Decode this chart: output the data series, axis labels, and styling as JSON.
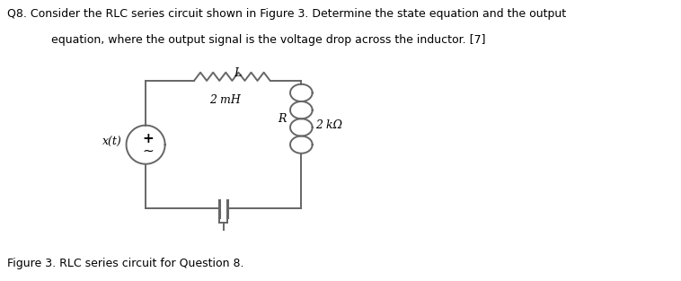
{
  "title_line1": "Q8. Consider the RLC series circuit shown in Figure 3. Determine the state equation and the output",
  "title_line2": "     equation, where the output signal is the voltage drop across the inductor. [7]",
  "figure_caption": "Figure 3. RLC series circuit for Question 8.",
  "label_L": "L",
  "label_2mH": "2 mH",
  "label_R": "R",
  "label_2kohm": "2 kΩ",
  "label_xt": "x(t)",
  "label_plus": "+",
  "label_tilde": "∼",
  "line_color": "#666666",
  "bg_color": "#ffffff",
  "text_color": "#000000"
}
